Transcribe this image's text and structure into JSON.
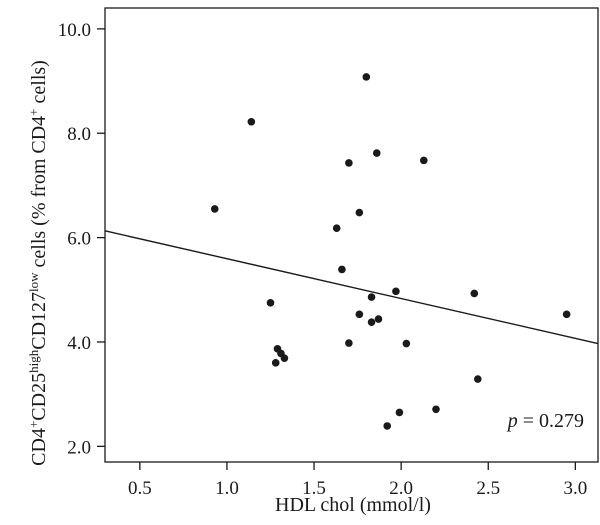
{
  "chart_data": {
    "type": "scatter",
    "title": "",
    "xlabel": "HDL chol (mmol/l)",
    "ylabel": {
      "p1": "CD4",
      "s1": "+",
      "p2": "CD25",
      "s2": "high",
      "p3": "CD127",
      "s3": "low",
      "p4": " cells (% from CD4",
      "s4": "+",
      "p5": " cells)"
    },
    "xlim": [
      0.3,
      3.13
    ],
    "ylim": [
      1.7,
      10.4
    ],
    "x_ticks": [
      "0.5",
      "1.0",
      "1.5",
      "2.0",
      "2.5",
      "3.0"
    ],
    "y_ticks": [
      "2.0",
      "4.0",
      "6.0",
      "8.0",
      "10.0"
    ],
    "grid": false,
    "legend": "none",
    "points": [
      {
        "x": 0.93,
        "y": 6.55
      },
      {
        "x": 1.14,
        "y": 8.22
      },
      {
        "x": 1.25,
        "y": 4.75
      },
      {
        "x": 1.28,
        "y": 3.6
      },
      {
        "x": 1.29,
        "y": 3.87
      },
      {
        "x": 1.31,
        "y": 3.78
      },
      {
        "x": 1.33,
        "y": 3.69
      },
      {
        "x": 1.63,
        "y": 6.18
      },
      {
        "x": 1.66,
        "y": 5.39
      },
      {
        "x": 1.7,
        "y": 7.43
      },
      {
        "x": 1.7,
        "y": 3.98
      },
      {
        "x": 1.76,
        "y": 6.48
      },
      {
        "x": 1.76,
        "y": 4.53
      },
      {
        "x": 1.8,
        "y": 9.08
      },
      {
        "x": 1.83,
        "y": 4.86
      },
      {
        "x": 1.83,
        "y": 4.38
      },
      {
        "x": 1.86,
        "y": 7.62
      },
      {
        "x": 1.87,
        "y": 4.44
      },
      {
        "x": 1.92,
        "y": 2.39
      },
      {
        "x": 1.97,
        "y": 4.97
      },
      {
        "x": 1.99,
        "y": 2.65
      },
      {
        "x": 2.03,
        "y": 3.97
      },
      {
        "x": 2.13,
        "y": 7.48
      },
      {
        "x": 2.2,
        "y": 2.71
      },
      {
        "x": 2.42,
        "y": 4.93
      },
      {
        "x": 2.44,
        "y": 3.29
      },
      {
        "x": 2.95,
        "y": 4.53
      }
    ],
    "regression_line": {
      "x": [
        0.3,
        3.13
      ],
      "y": [
        6.13,
        3.97
      ]
    },
    "annotation": {
      "italic": "p",
      "rest": " = 0.279"
    },
    "colors": {
      "points": "#1a1a1a",
      "line": "#1a1a1a",
      "axes": "#1a1a1a"
    }
  }
}
